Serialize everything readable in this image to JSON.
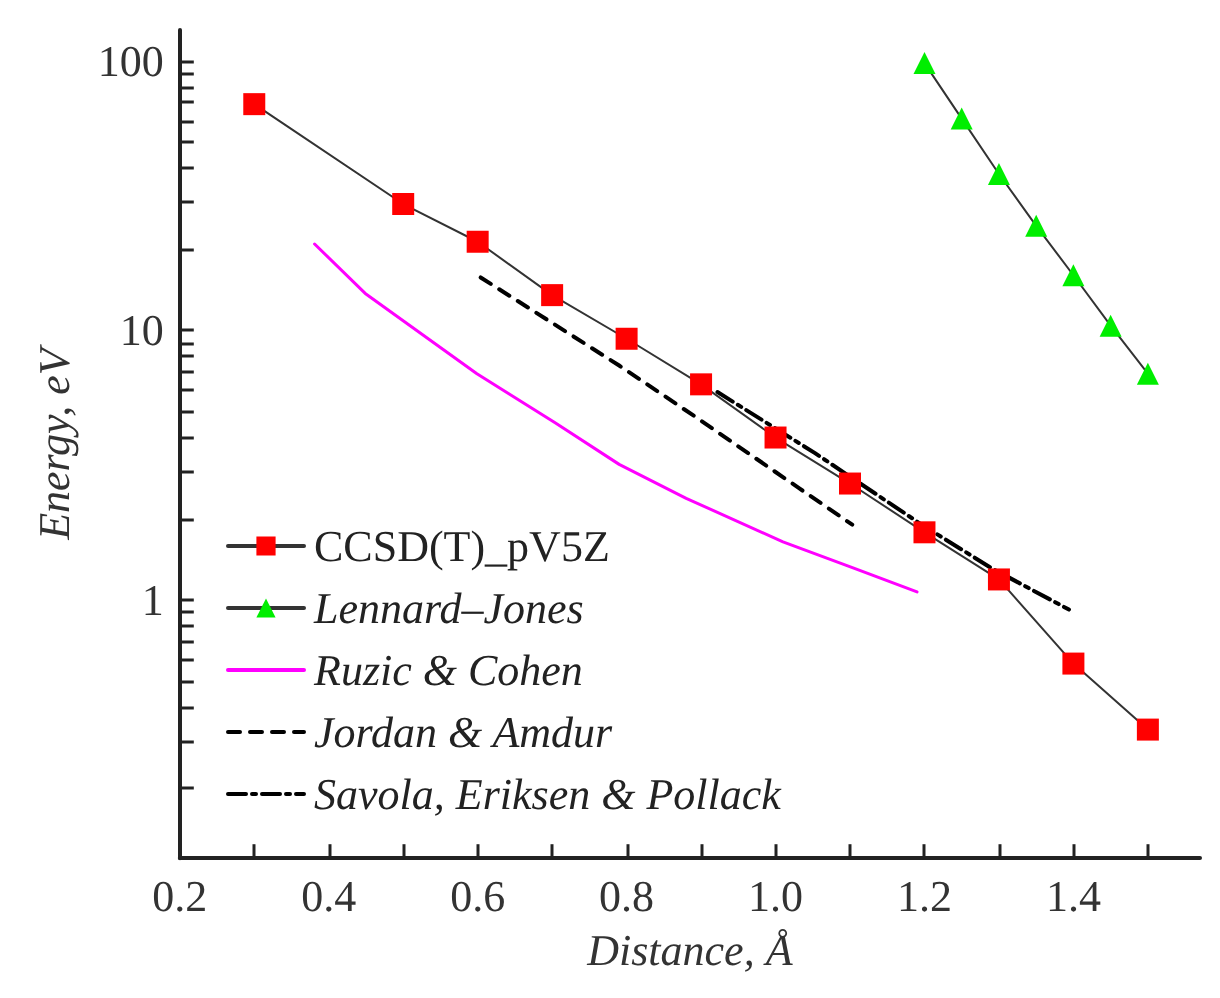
{
  "chart_data": {
    "type": "line",
    "xlabel": "Distance, Å",
    "ylabel": "Energy, eV",
    "log": "y",
    "grid": false,
    "legend": "bottom left",
    "xlim": [
      0.2,
      1.57
    ],
    "ylim": [
      0.11,
      130
    ],
    "xticks": [
      0.2,
      {
        "value": 0.3,
        "label": null
      },
      0.4,
      {
        "value": 0.5,
        "label": null
      },
      0.6,
      {
        "value": 0.7,
        "label": null
      },
      0.8,
      {
        "value": 0.9,
        "label": null
      },
      {
        "value": 1,
        "label": "1.0"
      },
      {
        "value": 1.1,
        "label": null
      },
      1.2,
      {
        "value": 1.3,
        "label": null
      },
      1.4,
      {
        "value": 1.5,
        "label": null
      }
    ],
    "yticks": [
      {
        "value": 0.2,
        "label": null
      },
      {
        "value": 0.3,
        "label": null
      },
      {
        "value": 0.4,
        "label": null
      },
      {
        "value": 0.5,
        "label": null
      },
      {
        "value": 0.6,
        "label": null
      },
      {
        "value": 0.7,
        "label": null
      },
      {
        "value": 0.8,
        "label": null
      },
      {
        "value": 0.9,
        "label": null
      },
      1,
      {
        "value": 2,
        "label": null
      },
      {
        "value": 3,
        "label": null
      },
      {
        "value": 4,
        "label": null
      },
      {
        "value": 5,
        "label": null
      },
      {
        "value": 6,
        "label": null
      },
      {
        "value": 7,
        "label": null
      },
      {
        "value": 8,
        "label": null
      },
      {
        "value": 9,
        "label": null
      },
      10,
      {
        "value": 20,
        "label": null
      },
      {
        "value": 30,
        "label": null
      },
      {
        "value": 40,
        "label": null
      },
      {
        "value": 50,
        "label": null
      },
      {
        "value": 60,
        "label": null
      },
      {
        "value": 70,
        "label": null
      },
      {
        "value": 80,
        "label": null
      },
      {
        "value": 90,
        "label": null
      },
      100
    ],
    "series": [
      {
        "name": "CCSD(T)_pV5Z",
        "color": "#ff0000",
        "marker": "square",
        "line_style": "solid",
        "x": [
          0.3,
          0.5,
          0.6,
          0.7,
          0.8,
          0.9,
          1.0,
          1.1,
          1.2,
          1.3,
          1.4,
          1.5
        ],
        "values": [
          69,
          29.4,
          21.3,
          13.5,
          9.3,
          6.3,
          4.0,
          2.7,
          1.78,
          1.19,
          0.58,
          0.33
        ]
      },
      {
        "name": "Lennard–Jones",
        "color": "#00ee00",
        "marker": "triangle",
        "line_style": "solid",
        "x": [
          1.2,
          1.25,
          1.3,
          1.35,
          1.4,
          1.45,
          1.5
        ],
        "values": [
          98,
          61,
          38,
          24.4,
          16,
          10.4,
          6.9
        ]
      },
      {
        "name": "Ruzic & Cohen",
        "color": "#ff00ff",
        "marker": "none",
        "line_style": "solid",
        "x": [
          0.381,
          0.449,
          0.599,
          0.704,
          0.79,
          0.88,
          1.01,
          1.105,
          1.19
        ],
        "values": [
          20.9,
          13.7,
          6.9,
          4.54,
          3.18,
          2.38,
          1.64,
          1.31,
          1.07
        ]
      },
      {
        "name": "Jordan & Amdur",
        "color": "#000000",
        "marker": "none",
        "line_style": "dashed",
        "x": [
          0.604,
          0.79,
          0.896,
          1.032,
          1.103
        ],
        "values": [
          15.7,
          7.4,
          4.7,
          2.59,
          1.9
        ]
      },
      {
        "name": "Savola, Eriksen & Pollack",
        "color": "#000000",
        "marker": "none",
        "line_style": "dashdot",
        "x": [
          0.922,
          1.053,
          1.195,
          1.29,
          1.394
        ],
        "values": [
          5.9,
          3.5,
          1.91,
          1.31,
          0.92
        ]
      }
    ]
  }
}
